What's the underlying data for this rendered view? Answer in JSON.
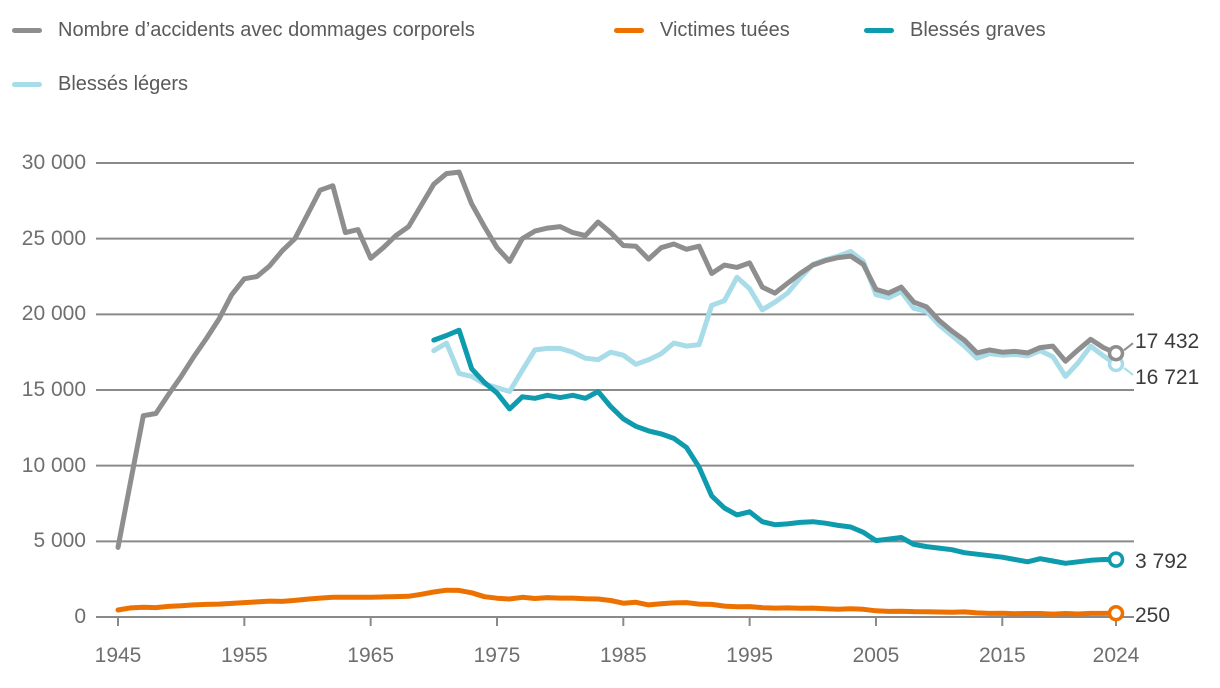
{
  "legend": {
    "items": [
      {
        "key": "accidents",
        "label": "Nombre d’accidents avec dommages corporels",
        "color": "#8e8e8e"
      },
      {
        "key": "tues",
        "label": "Victimes tuées",
        "color": "#ed7100"
      },
      {
        "key": "graves",
        "label": "Blessés graves",
        "color": "#0d9bad"
      },
      {
        "key": "legers",
        "label": "Blessés légers",
        "color": "#a8dce8"
      }
    ]
  },
  "axes": {
    "y_ticks": [
      {
        "label": "30 000",
        "value": 30000
      },
      {
        "label": "25 000",
        "value": 25000
      },
      {
        "label": "20 000",
        "value": 20000
      },
      {
        "label": "15 000",
        "value": 15000
      },
      {
        "label": "10 000",
        "value": 10000
      },
      {
        "label": "5 000",
        "value": 5000
      },
      {
        "label": "0",
        "value": 0
      }
    ],
    "x_ticks": [
      {
        "label": "1945",
        "year": 1945
      },
      {
        "label": "1955",
        "year": 1955
      },
      {
        "label": "1965",
        "year": 1965
      },
      {
        "label": "1975",
        "year": 1975
      },
      {
        "label": "1985",
        "year": 1985
      },
      {
        "label": "1995",
        "year": 1995
      },
      {
        "label": "2005",
        "year": 2005
      },
      {
        "label": "2015",
        "year": 2015
      },
      {
        "label": "2024",
        "year": 2024
      }
    ]
  },
  "colors": {
    "grid": "#8a8a8a",
    "axis_text": "#6f6f6f",
    "end_label_text": "#3b3b3b",
    "legend_text": "#5a5a5a",
    "marker_fill": "#ffffff"
  },
  "chart_data": {
    "type": "line",
    "title": "",
    "x_range": [
      1945,
      2024
    ],
    "y_range": [
      0,
      30000
    ],
    "grid": true,
    "legend_position": "top",
    "series": [
      {
        "key": "legers",
        "name": "Blessés légers",
        "color": "#a8dce8",
        "start_year": 1970,
        "end_value_label": "16 721",
        "values": [
          17600,
          18100,
          16100,
          15900,
          15400,
          15150,
          14900,
          16300,
          17650,
          17750,
          17750,
          17500,
          17100,
          17000,
          17500,
          17300,
          16700,
          17000,
          17400,
          18100,
          17900,
          18000,
          20600,
          20900,
          22450,
          21700,
          20300,
          20800,
          21400,
          22400,
          23300,
          23600,
          23850,
          24150,
          23500,
          21300,
          21100,
          21500,
          20400,
          20200,
          19300,
          18600,
          17900,
          17100,
          17400,
          17300,
          17350,
          17250,
          17600,
          17200,
          15900,
          16800,
          17900,
          17250,
          16721
        ]
      },
      {
        "key": "graves",
        "name": "Blessés graves",
        "color": "#0d9bad",
        "start_year": 1970,
        "end_value_label": "3 792",
        "values": [
          18300,
          18600,
          18950,
          16400,
          15500,
          14800,
          13750,
          14550,
          14450,
          14650,
          14500,
          14650,
          14450,
          14900,
          13900,
          13100,
          12600,
          12300,
          12100,
          11800,
          11200,
          9900,
          8000,
          7200,
          6750,
          6950,
          6300,
          6100,
          6150,
          6250,
          6300,
          6200,
          6050,
          5950,
          5600,
          5050,
          5150,
          5250,
          4800,
          4650,
          4550,
          4450,
          4250,
          4150,
          4050,
          3950,
          3800,
          3650,
          3850,
          3700,
          3550,
          3650,
          3750,
          3800,
          3792
        ]
      },
      {
        "key": "accidents",
        "name": "Nombre d’accidents avec dommages corporels",
        "color": "#8e8e8e",
        "start_year": 1945,
        "end_value_label": "17 432",
        "values": [
          4600,
          8950,
          13300,
          13450,
          14700,
          15900,
          17200,
          18400,
          19700,
          21300,
          22350,
          22500,
          23200,
          24200,
          25000,
          26600,
          28200,
          28500,
          25400,
          25600,
          23700,
          24400,
          25200,
          25800,
          27200,
          28600,
          29300,
          29400,
          27300,
          25800,
          24400,
          23500,
          25000,
          25500,
          25700,
          25800,
          25400,
          25200,
          26100,
          25400,
          24550,
          24500,
          23650,
          24400,
          24650,
          24300,
          24500,
          22700,
          23250,
          23100,
          23400,
          21800,
          21400,
          22050,
          22700,
          23250,
          23550,
          23750,
          23850,
          23300,
          21650,
          21400,
          21800,
          20800,
          20500,
          19600,
          18900,
          18300,
          17450,
          17650,
          17500,
          17550,
          17450,
          17800,
          17900,
          16900,
          17650,
          18350,
          17800,
          17432
        ]
      },
      {
        "key": "tues",
        "name": "Victimes tuées",
        "color": "#ed7100",
        "start_year": 1945,
        "end_value_label": "250",
        "values": [
          460,
          600,
          650,
          620,
          700,
          740,
          800,
          830,
          850,
          900,
          950,
          1000,
          1050,
          1030,
          1100,
          1180,
          1250,
          1300,
          1300,
          1310,
          1300,
          1330,
          1350,
          1370,
          1500,
          1650,
          1770,
          1760,
          1600,
          1340,
          1240,
          1190,
          1300,
          1220,
          1280,
          1250,
          1250,
          1200,
          1190,
          1090,
          910,
          970,
          800,
          880,
          930,
          950,
          850,
          830,
          720,
          680,
          690,
          620,
          590,
          600,
          580,
          590,
          540,
          510,
          550,
          510,
          410,
          370,
          380,
          360,
          350,
          330,
          320,
          340,
          270,
          240,
          250,
          220,
          230,
          230,
          190,
          230,
          200,
          240,
          240,
          250
        ]
      }
    ]
  }
}
